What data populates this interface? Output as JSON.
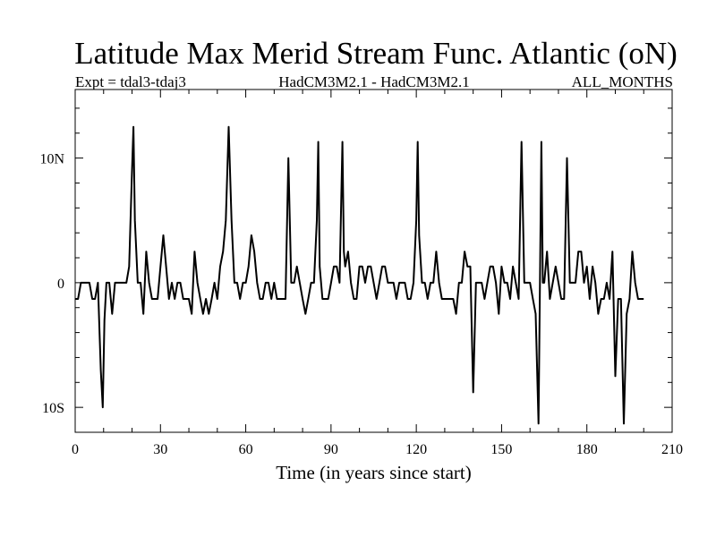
{
  "title": "Latitude Max Merid Stream Func. Atlantic (oN)",
  "subtitle_left": "Expt = tdal3-tdaj3",
  "subtitle_center": "HadCM3M2.1 - HadCM3M2.1",
  "subtitle_right": "ALL_MONTHS",
  "chart_data": {
    "type": "line",
    "title": "Latitude Max Merid Stream Func. Atlantic (oN)",
    "xlabel": "Time (in years since start)",
    "ylabel": "",
    "xlim": [
      0,
      210
    ],
    "ylim": [
      -12,
      15.5
    ],
    "x_ticks": [
      0,
      30,
      60,
      90,
      120,
      150,
      180,
      210
    ],
    "x_tick_labels": [
      "0",
      "30",
      "60",
      "90",
      "120",
      "150",
      "180",
      "210"
    ],
    "y_ticks": [
      -10,
      0,
      10
    ],
    "y_tick_labels": [
      "10S",
      "0",
      "10N"
    ],
    "grid": false,
    "series": [
      {
        "color": "#000000",
        "points": [
          [
            0,
            -1.3
          ],
          [
            1,
            -1.3
          ],
          [
            2,
            0
          ],
          [
            3,
            0
          ],
          [
            4,
            0
          ],
          [
            5,
            0
          ],
          [
            6,
            -1.3
          ],
          [
            7,
            -1.3
          ],
          [
            8,
            0
          ],
          [
            9,
            -7
          ],
          [
            9.7,
            -10
          ],
          [
            10.3,
            -3
          ],
          [
            11,
            0
          ],
          [
            12,
            0
          ],
          [
            13,
            -2.5
          ],
          [
            14,
            0
          ],
          [
            15,
            0
          ],
          [
            16,
            0
          ],
          [
            17,
            0
          ],
          [
            18,
            0
          ],
          [
            19,
            1.3
          ],
          [
            20,
            9
          ],
          [
            20.5,
            12.5
          ],
          [
            21,
            5
          ],
          [
            22,
            0
          ],
          [
            23,
            0
          ],
          [
            24,
            -2.5
          ],
          [
            25,
            2.5
          ],
          [
            26,
            0
          ],
          [
            27,
            -1.3
          ],
          [
            28,
            -1.3
          ],
          [
            29,
            -1.3
          ],
          [
            30,
            1.3
          ],
          [
            31,
            3.8
          ],
          [
            32,
            1.3
          ],
          [
            33,
            -1.3
          ],
          [
            34,
            0
          ],
          [
            35,
            -1.3
          ],
          [
            36,
            0
          ],
          [
            37,
            0
          ],
          [
            38,
            -1.3
          ],
          [
            39,
            -1.3
          ],
          [
            40,
            -1.3
          ],
          [
            41,
            -2.5
          ],
          [
            42,
            2.5
          ],
          [
            43,
            0
          ],
          [
            44,
            -1.3
          ],
          [
            45,
            -2.5
          ],
          [
            46,
            -1.3
          ],
          [
            47,
            -2.5
          ],
          [
            48,
            -1.3
          ],
          [
            49,
            0
          ],
          [
            50,
            -1.3
          ],
          [
            51,
            1.3
          ],
          [
            52,
            2.5
          ],
          [
            53,
            5
          ],
          [
            54,
            12.5
          ],
          [
            55,
            5
          ],
          [
            56,
            0
          ],
          [
            57,
            0
          ],
          [
            58,
            -1.3
          ],
          [
            59,
            0
          ],
          [
            60,
            0
          ],
          [
            61,
            1.3
          ],
          [
            62,
            3.8
          ],
          [
            63,
            2.5
          ],
          [
            64,
            0
          ],
          [
            65,
            -1.3
          ],
          [
            66,
            -1.3
          ],
          [
            67,
            0
          ],
          [
            68,
            0
          ],
          [
            69,
            -1.3
          ],
          [
            70,
            0
          ],
          [
            71,
            -1.3
          ],
          [
            72,
            -1.3
          ],
          [
            73,
            -1.3
          ],
          [
            74,
            -1.3
          ],
          [
            75,
            10
          ],
          [
            76,
            0
          ],
          [
            77,
            0
          ],
          [
            78,
            1.3
          ],
          [
            79,
            0
          ],
          [
            80,
            -1.3
          ],
          [
            81,
            -2.5
          ],
          [
            82,
            -1.3
          ],
          [
            83,
            0
          ],
          [
            84,
            0
          ],
          [
            85,
            5
          ],
          [
            85.5,
            11.3
          ],
          [
            86,
            1.3
          ],
          [
            87,
            -1.3
          ],
          [
            88,
            -1.3
          ],
          [
            89,
            -1.3
          ],
          [
            90,
            0
          ],
          [
            91,
            1.3
          ],
          [
            92,
            1.3
          ],
          [
            93,
            0
          ],
          [
            94,
            11.3
          ],
          [
            94.5,
            2.5
          ],
          [
            95,
            1.3
          ],
          [
            96,
            2.5
          ],
          [
            97,
            0
          ],
          [
            98,
            -1.3
          ],
          [
            99,
            -1.3
          ],
          [
            100,
            1.3
          ],
          [
            101,
            1.3
          ],
          [
            102,
            0
          ],
          [
            103,
            1.3
          ],
          [
            104,
            1.3
          ],
          [
            105,
            0
          ],
          [
            106,
            -1.3
          ],
          [
            107,
            0
          ],
          [
            108,
            1.3
          ],
          [
            109,
            1.3
          ],
          [
            110,
            0
          ],
          [
            111,
            0
          ],
          [
            112,
            0
          ],
          [
            113,
            -1.3
          ],
          [
            114,
            0
          ],
          [
            115,
            0
          ],
          [
            116,
            0
          ],
          [
            117,
            -1.3
          ],
          [
            118,
            -1.3
          ],
          [
            119,
            0
          ],
          [
            120,
            5
          ],
          [
            120.5,
            11.3
          ],
          [
            121,
            3.8
          ],
          [
            122,
            0
          ],
          [
            123,
            0
          ],
          [
            124,
            -1.3
          ],
          [
            125,
            0
          ],
          [
            126,
            0
          ],
          [
            127,
            2.5
          ],
          [
            128,
            0
          ],
          [
            129,
            -1.3
          ],
          [
            130,
            -1.3
          ],
          [
            131,
            -1.3
          ],
          [
            132,
            -1.3
          ],
          [
            133,
            -1.3
          ],
          [
            134,
            -2.5
          ],
          [
            135,
            0
          ],
          [
            136,
            0
          ],
          [
            137,
            2.5
          ],
          [
            138,
            1.3
          ],
          [
            139,
            1.3
          ],
          [
            140,
            -8.8
          ],
          [
            141,
            0
          ],
          [
            142,
            0
          ],
          [
            143,
            0
          ],
          [
            144,
            -1.3
          ],
          [
            145,
            0
          ],
          [
            146,
            1.3
          ],
          [
            147,
            1.3
          ],
          [
            148,
            0
          ],
          [
            149,
            -2.5
          ],
          [
            150,
            1.3
          ],
          [
            151,
            0
          ],
          [
            152,
            0
          ],
          [
            153,
            -1.3
          ],
          [
            154,
            1.3
          ],
          [
            155,
            0
          ],
          [
            156,
            -1.3
          ],
          [
            157,
            11.3
          ],
          [
            158,
            0
          ],
          [
            159,
            0
          ],
          [
            160,
            0
          ],
          [
            161,
            -1.3
          ],
          [
            162,
            -2.5
          ],
          [
            163,
            -11.3
          ],
          [
            164,
            11.3
          ],
          [
            164.5,
            0
          ],
          [
            165,
            0
          ],
          [
            166,
            2.5
          ],
          [
            167,
            -1.3
          ],
          [
            168,
            0
          ],
          [
            169,
            1.3
          ],
          [
            170,
            0
          ],
          [
            171,
            -1.3
          ],
          [
            172,
            -1.3
          ],
          [
            173,
            10
          ],
          [
            174,
            0
          ],
          [
            175,
            0
          ],
          [
            176,
            0
          ],
          [
            177,
            2.5
          ],
          [
            178,
            2.5
          ],
          [
            179,
            0
          ],
          [
            180,
            1.3
          ],
          [
            181,
            -1.3
          ],
          [
            182,
            1.3
          ],
          [
            183,
            0
          ],
          [
            184,
            -2.5
          ],
          [
            185,
            -1.3
          ],
          [
            186,
            -1.3
          ],
          [
            187,
            0
          ],
          [
            188,
            -1.3
          ],
          [
            189,
            2.5
          ],
          [
            190,
            -7.5
          ],
          [
            191,
            -1.3
          ],
          [
            192,
            -1.3
          ],
          [
            193,
            -11.3
          ],
          [
            194,
            -2.5
          ],
          [
            195,
            -1.3
          ],
          [
            196,
            2.5
          ],
          [
            197,
            0
          ],
          [
            198,
            -1.3
          ],
          [
            199,
            -1.3
          ],
          [
            200,
            -1.3
          ]
        ]
      }
    ]
  }
}
